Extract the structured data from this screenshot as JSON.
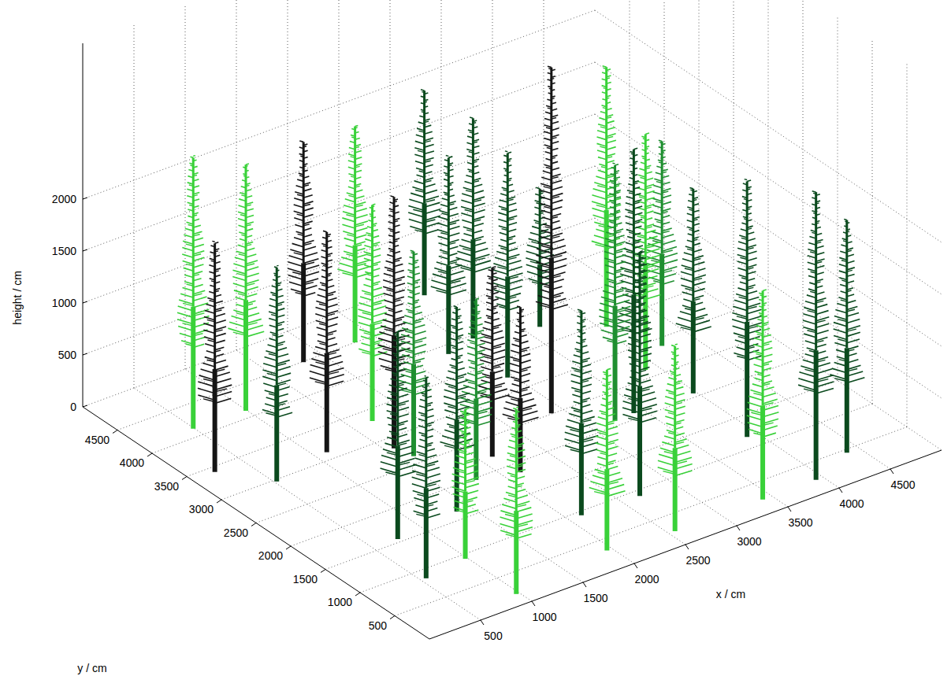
{
  "chart_data": {
    "type": "tree3d",
    "xlabel": "x / cm",
    "ylabel": "y / cm",
    "zlabel": "height / cm",
    "xlim": [
      0,
      5000
    ],
    "ylim": [
      0,
      5000
    ],
    "zlim": [
      0,
      3500
    ],
    "xticks": [
      500,
      1000,
      1500,
      2000,
      2500,
      3000,
      3500,
      4000,
      4500
    ],
    "yticks": [
      500,
      1000,
      1500,
      2000,
      2500,
      3000,
      3500,
      4000,
      4500
    ],
    "zticks": [
      0,
      500,
      1000,
      1500,
      2000
    ],
    "grid": true,
    "points": [
      {
        "x": 490,
        "y": 4130,
        "height": 2610,
        "color": "#39d139"
      },
      {
        "x": 220,
        "y": 3420,
        "height": 2200,
        "color": "#151515"
      },
      {
        "x": 990,
        "y": 4110,
        "height": 2370,
        "color": "#39d139"
      },
      {
        "x": 520,
        "y": 2970,
        "height": 2060,
        "color": "#0b4a1e"
      },
      {
        "x": 1810,
        "y": 4490,
        "height": 2120,
        "color": "#151515"
      },
      {
        "x": 1110,
        "y": 3120,
        "height": 2120,
        "color": "#151515"
      },
      {
        "x": 2320,
        "y": 4500,
        "height": 2080,
        "color": "#39d139"
      },
      {
        "x": 1690,
        "y": 3320,
        "height": 2080,
        "color": "#39d139"
      },
      {
        "x": 1570,
        "y": 2830,
        "height": 2420,
        "color": "#151515"
      },
      {
        "x": 740,
        "y": 1550,
        "height": 2000,
        "color": "#0b4a1e"
      },
      {
        "x": 1620,
        "y": 2620,
        "height": 1970,
        "color": "#1f8f30"
      },
      {
        "x": 550,
        "y": 860,
        "height": 1930,
        "color": "#0b4a1e"
      },
      {
        "x": 3200,
        "y": 4800,
        "height": 1970,
        "color": "#0b4a1e"
      },
      {
        "x": 2800,
        "y": 3860,
        "height": 1890,
        "color": "#0b4a1e"
      },
      {
        "x": 1370,
        "y": 1630,
        "height": 1970,
        "color": "#0b4a1e"
      },
      {
        "x": 980,
        "y": 930,
        "height": 1440,
        "color": "#39d139"
      },
      {
        "x": 1790,
        "y": 1970,
        "height": 1740,
        "color": "#1f8f30"
      },
      {
        "x": 3100,
        "y": 3950,
        "height": 2120,
        "color": "#0b4a1e"
      },
      {
        "x": 2110,
        "y": 2210,
        "height": 1820,
        "color": "#151515"
      },
      {
        "x": 2950,
        "y": 3230,
        "height": 2160,
        "color": "#0b4a1e"
      },
      {
        "x": 970,
        "y": 180,
        "height": 1780,
        "color": "#39d139"
      },
      {
        "x": 2140,
        "y": 1850,
        "height": 1590,
        "color": "#151515"
      },
      {
        "x": 2890,
        "y": 2510,
        "height": 3330,
        "color": "#151515"
      },
      {
        "x": 3630,
        "y": 3770,
        "height": 1330,
        "color": "#0b4a1e"
      },
      {
        "x": 2120,
        "y": 940,
        "height": 1970,
        "color": "#0b4a1e"
      },
      {
        "x": 1950,
        "y": 320,
        "height": 1740,
        "color": "#39d139"
      },
      {
        "x": 4050,
        "y": 3430,
        "height": 2500,
        "color": "#39d139"
      },
      {
        "x": 3220,
        "y": 2080,
        "height": 2460,
        "color": "#1f8f30"
      },
      {
        "x": 2670,
        "y": 910,
        "height": 2350,
        "color": "#0b4a1e"
      },
      {
        "x": 3410,
        "y": 2090,
        "height": 2540,
        "color": "#0b4a1e"
      },
      {
        "x": 3890,
        "y": 2630,
        "height": 2270,
        "color": "#39d139"
      },
      {
        "x": 4220,
        "y": 2880,
        "height": 1970,
        "color": "#1f8f30"
      },
      {
        "x": 2560,
        "y": 240,
        "height": 1780,
        "color": "#39d139"
      },
      {
        "x": 3970,
        "y": 2060,
        "height": 1970,
        "color": "#0b4a1e"
      },
      {
        "x": 3900,
        "y": 1180,
        "height": 2460,
        "color": "#0b4a1e"
      },
      {
        "x": 3410,
        "y": 230,
        "height": 2010,
        "color": "#39d139"
      },
      {
        "x": 3930,
        "y": 230,
        "height": 2770,
        "color": "#0b4a1e"
      },
      {
        "x": 4380,
        "y": 450,
        "height": 2240,
        "color": "#0b4a1e"
      }
    ]
  }
}
